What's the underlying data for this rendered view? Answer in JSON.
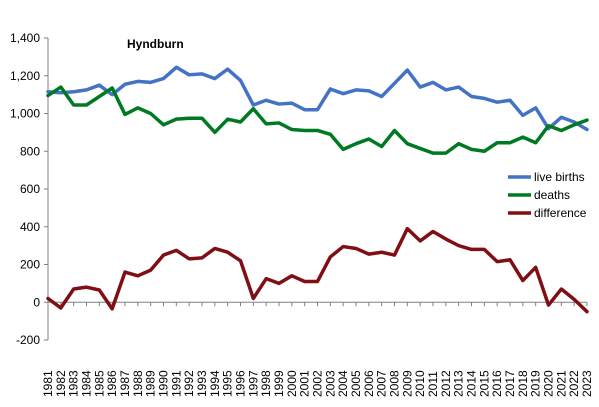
{
  "chart_data": {
    "type": "line",
    "title": "Hyndburn",
    "xlabel": "",
    "ylabel": "",
    "ylim": [
      -200,
      1400
    ],
    "yticks": [
      "1,400",
      "1,200",
      "1,000",
      "800",
      "600",
      "400",
      "200",
      "0",
      "-200"
    ],
    "ytick_values": [
      1400,
      1200,
      1000,
      800,
      600,
      400,
      200,
      0,
      -200
    ],
    "grid": false,
    "legend_position": "right",
    "categories": [
      "1981",
      "1982",
      "1983",
      "1984",
      "1985",
      "1986",
      "1987",
      "1988",
      "1989",
      "1990",
      "1991",
      "1992",
      "1993",
      "1994",
      "1995",
      "1996",
      "1997",
      "1998",
      "1999",
      "2000",
      "2001",
      "2002",
      "2003",
      "2004",
      "2005",
      "2006",
      "2007",
      "2008",
      "2009",
      "2010",
      "2011",
      "2012",
      "2013",
      "2014",
      "2015",
      "2016",
      "2017",
      "2018",
      "2019",
      "2020",
      "2021",
      "2022",
      "2023"
    ],
    "series": [
      {
        "name": "live births",
        "color": "#4472C4",
        "values": [
          1115,
          1110,
          1115,
          1125,
          1150,
          1100,
          1155,
          1170,
          1165,
          1185,
          1245,
          1205,
          1210,
          1185,
          1235,
          1175,
          1045,
          1070,
          1050,
          1055,
          1020,
          1020,
          1130,
          1105,
          1125,
          1120,
          1090,
          1160,
          1230,
          1140,
          1165,
          1125,
          1140,
          1090,
          1080,
          1060,
          1070,
          990,
          1030,
          920,
          980,
          955,
          915
        ]
      },
      {
        "name": "deaths",
        "color": "#007A22",
        "values": [
          1095,
          1140,
          1045,
          1045,
          1090,
          1135,
          995,
          1030,
          1000,
          940,
          970,
          975,
          975,
          900,
          970,
          955,
          1025,
          945,
          950,
          915,
          910,
          910,
          890,
          810,
          840,
          865,
          825,
          910,
          840,
          815,
          790,
          790,
          840,
          810,
          800,
          845,
          845,
          875,
          845,
          935,
          910,
          940,
          965
        ]
      },
      {
        "name": "difference",
        "color": "#7F0F14",
        "values": [
          20,
          -30,
          70,
          80,
          65,
          -35,
          160,
          140,
          170,
          250,
          275,
          230,
          235,
          285,
          265,
          220,
          20,
          125,
          100,
          140,
          110,
          110,
          240,
          295,
          285,
          255,
          265,
          250,
          390,
          325,
          375,
          335,
          300,
          280,
          280,
          215,
          225,
          115,
          185,
          -15,
          70,
          15,
          -50
        ]
      }
    ]
  }
}
